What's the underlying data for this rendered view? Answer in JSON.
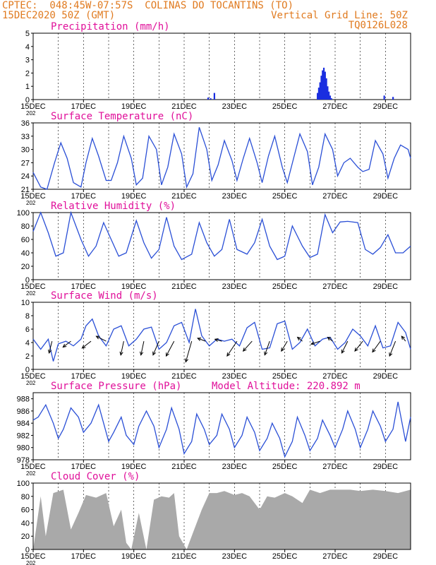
{
  "header": {
    "line1_left": "CPTEC:  048:45W-07:57S  COLINAS DO TOCANTINS (TO)",
    "line2_left": "15DEC2020 50Z (GMT)",
    "line2_right": "Vertical Grid Line: 50Z",
    "line3_right": "TQ0126L028"
  },
  "x_axis": {
    "labels": [
      "15DEC",
      "17DEC",
      "19DEC",
      "21DEC",
      "23DEC",
      "25DEC",
      "27DEC",
      "29DEC"
    ],
    "label_days": [
      0,
      2,
      4,
      6,
      8,
      10,
      12,
      14
    ],
    "days_span": 15,
    "year_stub": "202"
  },
  "colors": {
    "line": "#2a4fd6",
    "bar": "#1a2ee0",
    "cloud": "#a9a9a9",
    "title": "#e0109a",
    "header": "#e07a1f"
  },
  "chart_data": [
    {
      "type": "bar",
      "title": "Precipitation (mm/h)",
      "ylim": [
        0,
        5
      ],
      "yticks": [
        0,
        1,
        2,
        3,
        4,
        5
      ],
      "x": [
        6.95,
        7.05,
        7.2,
        11.3,
        11.35,
        11.4,
        11.45,
        11.5,
        11.55,
        11.6,
        11.65,
        11.7,
        11.75,
        11.8,
        11.85,
        13.95,
        14.3
      ],
      "values": [
        0.15,
        0.1,
        0.5,
        0.5,
        0.9,
        1.3,
        1.8,
        2.2,
        2.4,
        2.1,
        1.6,
        1.0,
        0.6,
        0.3,
        0.1,
        0.3,
        0.2
      ]
    },
    {
      "type": "line",
      "title": "Surface Temperature (nC)",
      "ylim": [
        21,
        36
      ],
      "yticks": [
        21,
        24,
        27,
        30,
        33,
        36
      ],
      "x": [
        0,
        0.3,
        0.55,
        0.85,
        1.1,
        1.35,
        1.6,
        1.9,
        2.1,
        2.35,
        2.6,
        2.9,
        3.1,
        3.35,
        3.6,
        3.9,
        4.1,
        4.35,
        4.6,
        4.9,
        5.1,
        5.35,
        5.6,
        5.9,
        6.1,
        6.35,
        6.6,
        6.9,
        7.1,
        7.35,
        7.6,
        7.9,
        8.1,
        8.35,
        8.6,
        8.9,
        9.1,
        9.35,
        9.6,
        9.9,
        10.1,
        10.35,
        10.6,
        10.9,
        11.1,
        11.35,
        11.6,
        11.9,
        12.1,
        12.35,
        12.6,
        12.9,
        13.1,
        13.35,
        13.6,
        13.9,
        14.1,
        14.35,
        14.6,
        14.9,
        15
      ],
      "values": [
        24.8,
        21.5,
        21,
        27,
        31.5,
        28,
        22.5,
        21.5,
        27,
        32.5,
        28.5,
        23,
        23,
        27,
        33,
        28,
        22,
        23.5,
        33,
        30,
        22,
        26,
        33.5,
        29,
        21.5,
        24.5,
        35,
        30,
        23,
        26.5,
        32,
        27.5,
        23,
        28,
        32.5,
        27,
        22.5,
        28.5,
        33,
        26,
        22.5,
        28,
        33.5,
        29.5,
        22,
        26,
        33.5,
        30,
        24,
        27,
        28,
        26,
        25,
        25.5,
        32,
        29,
        23.5,
        28,
        31,
        30,
        28
      ]
    },
    {
      "type": "line",
      "title": "Relative Humidity (%)",
      "ylim": [
        0,
        100
      ],
      "yticks": [
        0,
        20,
        40,
        60,
        80,
        100
      ],
      "x": [
        0,
        0.3,
        0.6,
        0.9,
        1.2,
        1.5,
        1.9,
        2.2,
        2.5,
        2.8,
        3.1,
        3.4,
        3.7,
        4.1,
        4.4,
        4.7,
        5.0,
        5.3,
        5.6,
        5.9,
        6.3,
        6.6,
        6.9,
        7.2,
        7.5,
        7.8,
        8.1,
        8.5,
        8.8,
        9.1,
        9.4,
        9.7,
        10,
        10.3,
        10.7,
        11,
        11.3,
        11.6,
        11.9,
        12.2,
        12.5,
        12.9,
        13.2,
        13.5,
        13.8,
        14.1,
        14.4,
        14.7,
        15
      ],
      "values": [
        72,
        100,
        70,
        35,
        40,
        100,
        60,
        35,
        50,
        85,
        60,
        35,
        40,
        88,
        55,
        32,
        45,
        93,
        50,
        30,
        38,
        85,
        55,
        35,
        45,
        90,
        45,
        38,
        55,
        90,
        50,
        30,
        35,
        80,
        50,
        33,
        38,
        97,
        70,
        86,
        87,
        85,
        45,
        38,
        48,
        67,
        40,
        40,
        50
      ]
    },
    {
      "type": "line",
      "title": "Surface Wind (m/s)",
      "ylim": [
        0,
        10
      ],
      "yticks": [
        0,
        2,
        4,
        6,
        8,
        10
      ],
      "x": [
        0,
        0.3,
        0.6,
        0.8,
        1.0,
        1.3,
        1.6,
        1.9,
        2.1,
        2.35,
        2.6,
        2.9,
        3.2,
        3.5,
        3.8,
        4.1,
        4.4,
        4.7,
        5.0,
        5.3,
        5.6,
        5.9,
        6.2,
        6.45,
        6.7,
        7.0,
        7.3,
        7.6,
        7.9,
        8.2,
        8.5,
        8.8,
        9.1,
        9.4,
        9.7,
        10.0,
        10.3,
        10.6,
        10.9,
        11.2,
        11.5,
        11.8,
        12.1,
        12.4,
        12.7,
        13.0,
        13.3,
        13.6,
        13.9,
        14.2,
        14.5,
        14.8,
        15
      ],
      "values": [
        4.5,
        3.0,
        4.5,
        1.2,
        3.8,
        4.2,
        3.5,
        4.5,
        6.5,
        7.5,
        5.0,
        3.5,
        6.0,
        6.5,
        3.5,
        4.5,
        6.0,
        6.3,
        3.0,
        4.0,
        6.5,
        7.0,
        4.0,
        9.0,
        5.0,
        3.5,
        4.5,
        4.2,
        4.5,
        3.5,
        6.2,
        7.0,
        3.0,
        3.2,
        6.8,
        7.2,
        3.0,
        4.0,
        6.0,
        3.5,
        4.5,
        4.8,
        3.0,
        4.0,
        6.0,
        5.0,
        3.5,
        6.5,
        3.2,
        3.5,
        7.0,
        5.5,
        3.0
      ],
      "arrows": [
        {
          "x": 0.75,
          "u": -0.3,
          "v": -1.2
        },
        {
          "x": 1.5,
          "u": -0.8,
          "v": -0.6
        },
        {
          "x": 2.3,
          "u": -0.9,
          "v": -0.7
        },
        {
          "x": 2.9,
          "u": -1.0,
          "v": 0.5
        },
        {
          "x": 3.6,
          "u": -0.3,
          "v": -1.4
        },
        {
          "x": 4.4,
          "u": -0.3,
          "v": -1.4
        },
        {
          "x": 5.0,
          "u": -0.6,
          "v": -1.4
        },
        {
          "x": 5.6,
          "u": -0.8,
          "v": -1.5
        },
        {
          "x": 6.3,
          "u": -0.6,
          "v": -2.1
        },
        {
          "x": 6.85,
          "u": -0.8,
          "v": 0.3
        },
        {
          "x": 7.5,
          "u": -0.7,
          "v": 0.2
        },
        {
          "x": 8.1,
          "u": -1.0,
          "v": -1.5
        },
        {
          "x": 8.7,
          "u": -0.9,
          "v": -1.0
        },
        {
          "x": 9.4,
          "u": -0.5,
          "v": -1.4
        },
        {
          "x": 10.1,
          "u": -0.6,
          "v": -1.0
        },
        {
          "x": 10.7,
          "u": -0.5,
          "v": 0.4
        },
        {
          "x": 11.4,
          "u": -0.9,
          "v": -0.3
        },
        {
          "x": 11.9,
          "u": -0.5,
          "v": 0.4
        },
        {
          "x": 12.5,
          "u": -0.6,
          "v": -1.2
        },
        {
          "x": 13.1,
          "u": -0.8,
          "v": -1.0
        },
        {
          "x": 13.8,
          "u": -0.8,
          "v": -1.1
        },
        {
          "x": 14.4,
          "u": -0.6,
          "v": -1.5
        },
        {
          "x": 14.8,
          "u": -0.4,
          "v": 0.5
        }
      ]
    },
    {
      "type": "line",
      "title": "Surface Pressure (hPa)",
      "annotation": "Model Altitude: 220.892 m",
      "ylim": [
        978,
        989
      ],
      "yticks": [
        978,
        980,
        982,
        984,
        986,
        988
      ],
      "x": [
        0,
        0.2,
        0.5,
        0.8,
        1.0,
        1.2,
        1.5,
        1.8,
        2.0,
        2.3,
        2.6,
        2.8,
        3.0,
        3.2,
        3.5,
        3.7,
        4.0,
        4.2,
        4.5,
        4.8,
        5.0,
        5.3,
        5.5,
        5.8,
        6.0,
        6.3,
        6.5,
        6.8,
        7.0,
        7.3,
        7.5,
        7.8,
        8.0,
        8.3,
        8.5,
        8.8,
        9.0,
        9.3,
        9.5,
        9.8,
        10.0,
        10.3,
        10.5,
        10.8,
        11.0,
        11.3,
        11.5,
        11.8,
        12.0,
        12.3,
        12.5,
        12.8,
        13.0,
        13.3,
        13.5,
        13.8,
        14.0,
        14.3,
        14.5,
        14.8,
        15
      ],
      "values": [
        984.5,
        985,
        987,
        984,
        981.5,
        983,
        986.5,
        985,
        982.5,
        984,
        987,
        984,
        981,
        982.5,
        985,
        982,
        980.5,
        983.5,
        986,
        983.5,
        980,
        983,
        986.5,
        983,
        979,
        981,
        985.5,
        983,
        980.5,
        982,
        985.5,
        983,
        980,
        982,
        985,
        982.5,
        979.5,
        981.5,
        984,
        981.5,
        978.5,
        981,
        985,
        982,
        979.5,
        981.5,
        984.5,
        982,
        980,
        983,
        986,
        983,
        980,
        983,
        986,
        983.5,
        981,
        983,
        987.5,
        981,
        985
      ]
    },
    {
      "type": "area",
      "title": "Cloud Cover (%)",
      "ylim": [
        0,
        100
      ],
      "yticks": [
        0,
        20,
        40,
        60,
        80,
        100
      ],
      "x": [
        0,
        0.3,
        0.5,
        0.8,
        1.2,
        1.5,
        1.8,
        2.1,
        2.5,
        2.9,
        3.2,
        3.5,
        3.7,
        3.9,
        4.2,
        4.5,
        4.8,
        5.1,
        5.4,
        5.6,
        5.8,
        6.1,
        6.4,
        6.7,
        7.0,
        7.3,
        7.6,
        8.0,
        8.3,
        8.6,
        9.0,
        9.3,
        9.6,
        10.0,
        10.3,
        10.7,
        11.0,
        11.4,
        11.8,
        12.2,
        12.6,
        13.0,
        13.5,
        14.0,
        14.5,
        15
      ],
      "values": [
        0,
        80,
        20,
        85,
        90,
        30,
        55,
        82,
        78,
        85,
        35,
        60,
        10,
        0,
        55,
        0,
        75,
        80,
        78,
        85,
        20,
        0,
        30,
        60,
        85,
        85,
        88,
        82,
        85,
        80,
        60,
        80,
        78,
        85,
        80,
        70,
        90,
        85,
        90,
        90,
        90,
        88,
        90,
        88,
        85,
        90
      ]
    }
  ]
}
